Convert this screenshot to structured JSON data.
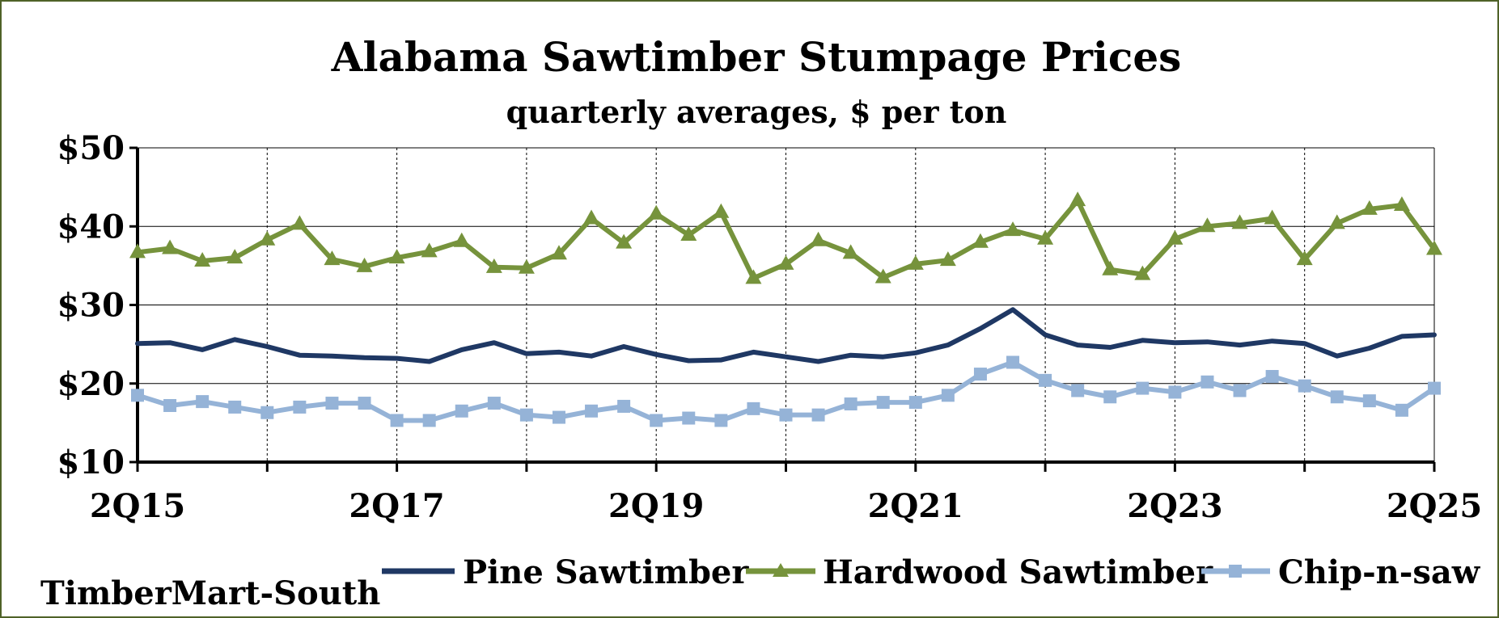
{
  "chart_data": {
    "type": "line",
    "title": "Alabama Sawtimber Stumpage Prices",
    "subtitle": "quarterly averages, $ per ton",
    "source": "TimberMart-South",
    "x_tick_labels": [
      "2Q15",
      "2Q17",
      "2Q19",
      "2Q21",
      "2Q23",
      "2Q25"
    ],
    "y_tick_labels": [
      "$10",
      "$20",
      "$30",
      "$40",
      "$50"
    ],
    "ylim": [
      10,
      50
    ],
    "y_ticks": [
      10,
      20,
      30,
      40,
      50
    ],
    "x": [
      "2Q15",
      "3Q15",
      "4Q15",
      "1Q16",
      "2Q16",
      "3Q16",
      "4Q16",
      "1Q17",
      "2Q17",
      "3Q17",
      "4Q17",
      "1Q18",
      "2Q18",
      "3Q18",
      "4Q18",
      "1Q19",
      "2Q19",
      "3Q19",
      "4Q19",
      "1Q20",
      "2Q20",
      "3Q20",
      "4Q20",
      "1Q21",
      "2Q21",
      "3Q21",
      "4Q21",
      "1Q22",
      "2Q22",
      "3Q22",
      "4Q22",
      "1Q23",
      "2Q23",
      "3Q23",
      "4Q23",
      "1Q24",
      "2Q24",
      "3Q24",
      "4Q24",
      "1Q25",
      "2Q25"
    ],
    "grid": "on",
    "legend_position": "bottom",
    "series": [
      {
        "name": "Pine Sawtimber",
        "color": "#1f3864",
        "marker": "none",
        "values": [
          25.1,
          25.2,
          24.3,
          25.6,
          24.7,
          23.6,
          23.5,
          23.3,
          23.2,
          22.8,
          24.3,
          25.2,
          23.8,
          24.0,
          23.5,
          24.7,
          23.7,
          22.9,
          23.0,
          24.0,
          23.4,
          22.8,
          23.6,
          23.4,
          23.9,
          24.9,
          27.0,
          29.4,
          26.2,
          24.9,
          24.6,
          25.5,
          25.2,
          25.3,
          24.9,
          25.4,
          25.1,
          23.5,
          24.5,
          26.0,
          26.2
        ]
      },
      {
        "name": "Hardwood Sawtimber",
        "color": "#76933c",
        "marker": "triangle",
        "values": [
          36.7,
          37.2,
          35.6,
          36.0,
          38.3,
          40.3,
          35.8,
          34.9,
          36.0,
          36.8,
          38.1,
          34.8,
          34.7,
          36.5,
          41.0,
          37.9,
          41.6,
          38.9,
          41.8,
          33.4,
          35.2,
          38.2,
          36.6,
          33.5,
          35.2,
          35.7,
          38.0,
          39.5,
          38.4,
          43.3,
          34.5,
          33.9,
          38.4,
          40.0,
          40.4,
          41.0,
          35.8,
          40.4,
          42.2,
          42.7,
          37.1
        ]
      },
      {
        "name": "Chip-n-saw",
        "color": "#95b3d7",
        "marker": "square",
        "values": [
          18.5,
          17.2,
          17.7,
          17.0,
          16.3,
          17.0,
          17.5,
          17.5,
          15.3,
          15.3,
          16.5,
          17.5,
          16.0,
          15.7,
          16.5,
          17.1,
          15.3,
          15.6,
          15.3,
          16.8,
          16.0,
          16.0,
          17.4,
          17.6,
          17.6,
          18.5,
          21.2,
          22.7,
          20.4,
          19.1,
          18.3,
          19.4,
          18.9,
          20.2,
          19.1,
          20.9,
          19.7,
          18.3,
          17.8,
          16.6,
          19.4
        ]
      }
    ]
  }
}
